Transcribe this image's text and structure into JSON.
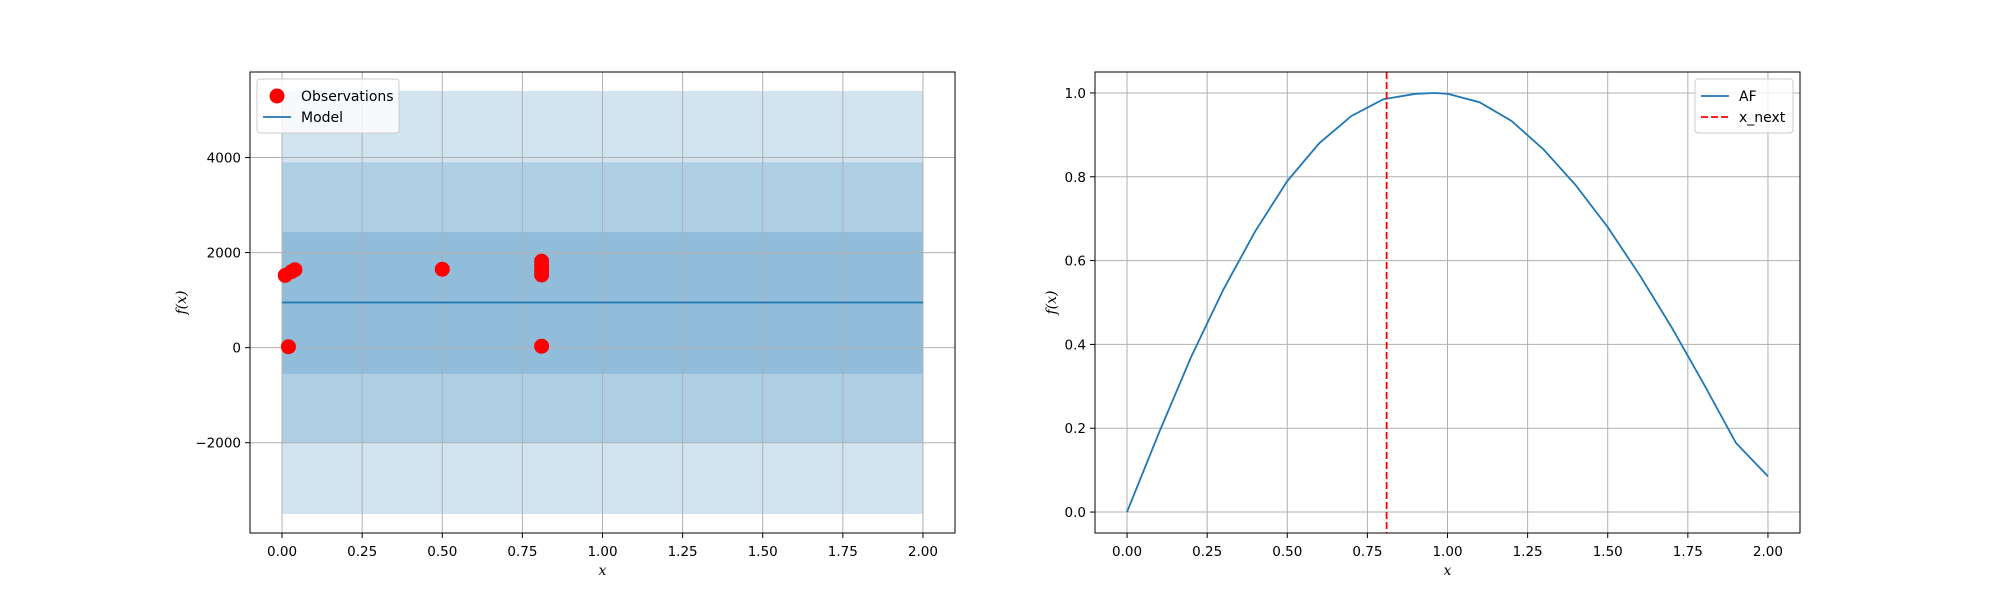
{
  "chart_data": [
    {
      "type": "scatter",
      "title": "",
      "xlabel": "x",
      "ylabel": "f(x)",
      "xlim": [
        -0.1,
        2.1
      ],
      "ylim": [
        -3900,
        5800
      ],
      "grid": true,
      "legend_position": "upper-left",
      "x_ticks": [
        0.0,
        0.25,
        0.5,
        0.75,
        1.0,
        1.25,
        1.5,
        1.75,
        2.0
      ],
      "x_tick_labels": [
        "0.00",
        "0.25",
        "0.50",
        "0.75",
        "1.00",
        "1.25",
        "1.50",
        "1.75",
        "2.00"
      ],
      "y_ticks": [
        -2000,
        0,
        2000,
        4000
      ],
      "y_tick_labels": [
        "−2000",
        "0",
        "2000",
        "4000"
      ],
      "confidence_bands": [
        {
          "lower": -3500,
          "upper": 5400,
          "opacity": 0.2
        },
        {
          "lower": -2000,
          "upper": 3900,
          "opacity": 0.4
        },
        {
          "lower": -550,
          "upper": 2430,
          "opacity": 0.6
        }
      ],
      "band_x_range": [
        0.0,
        2.0
      ],
      "series": [
        {
          "name": "Observations",
          "kind": "scatter",
          "color": "#ff0000",
          "points": [
            [
              0.01,
              1520
            ],
            [
              0.03,
              1600
            ],
            [
              0.04,
              1640
            ],
            [
              0.02,
              20
            ],
            [
              0.5,
              1650
            ],
            [
              0.81,
              1820
            ],
            [
              0.81,
              1720
            ],
            [
              0.81,
              1620
            ],
            [
              0.81,
              1530
            ],
            [
              0.81,
              30
            ]
          ]
        },
        {
          "name": "Model",
          "kind": "line",
          "color": "#1f77b4",
          "x": [
            0.0,
            2.0
          ],
          "y": [
            950,
            950
          ]
        }
      ]
    },
    {
      "type": "line",
      "title": "",
      "xlabel": "x",
      "ylabel": "f(x)",
      "xlim": [
        -0.1,
        2.1
      ],
      "ylim": [
        -0.05,
        1.05
      ],
      "grid": true,
      "legend_position": "upper-right",
      "x_ticks": [
        0.0,
        0.25,
        0.5,
        0.75,
        1.0,
        1.25,
        1.5,
        1.75,
        2.0
      ],
      "x_tick_labels": [
        "0.00",
        "0.25",
        "0.50",
        "0.75",
        "1.00",
        "1.25",
        "1.50",
        "1.75",
        "2.00"
      ],
      "y_ticks": [
        0.0,
        0.2,
        0.4,
        0.6,
        0.8,
        1.0
      ],
      "y_tick_labels": [
        "0.0",
        "0.2",
        "0.4",
        "0.6",
        "0.8",
        "1.0"
      ],
      "series": [
        {
          "name": "AF",
          "kind": "line",
          "color": "#1f77b4",
          "x": [
            0.0,
            0.1,
            0.2,
            0.3,
            0.4,
            0.5,
            0.6,
            0.7,
            0.8,
            0.9,
            0.96,
            1.0,
            1.1,
            1.2,
            1.3,
            1.4,
            1.5,
            1.6,
            1.7,
            1.8,
            1.9,
            2.0
          ],
          "y": [
            0.0,
            0.19,
            0.37,
            0.53,
            0.67,
            0.79,
            0.88,
            0.945,
            0.985,
            0.998,
            1.0,
            0.998,
            0.978,
            0.933,
            0.865,
            0.78,
            0.68,
            0.565,
            0.44,
            0.305,
            0.165,
            0.085
          ]
        },
        {
          "name": "x_next",
          "kind": "vline",
          "color": "#ff0000",
          "dashed": true,
          "x": 0.81
        }
      ]
    }
  ]
}
